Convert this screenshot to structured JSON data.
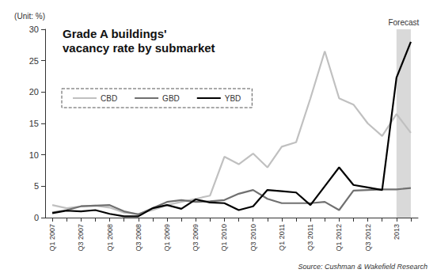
{
  "chart_data": {
    "type": "line",
    "title": "Grade A buildings'\nvacancy rate by submarket",
    "y_label": "(Unit: %)",
    "source": "Source: Cushman & Wakefield Research",
    "categories": [
      "Q1 2007",
      null,
      "Q3 2007",
      null,
      "Q1 2008",
      null,
      "Q3 2008",
      null,
      "Q1 2009",
      null,
      "Q3 2009",
      null,
      "Q1 2010",
      null,
      "Q3 2010",
      null,
      "Q1 2011",
      null,
      "Q3 2011",
      null,
      "Q1 2012",
      null,
      "Q3 2012",
      null,
      "2013",
      null
    ],
    "series": [
      {
        "name": "CBD",
        "color": "#c0c0c0",
        "values": [
          2,
          1.5,
          1.8,
          1.9,
          1.6,
          0.8,
          0.6,
          1.2,
          2,
          2.5,
          3,
          3.5,
          9.7,
          8.5,
          10.2,
          8,
          11.3,
          12,
          19,
          26.5,
          19,
          18,
          15,
          13,
          16.5,
          13.5
        ]
      },
      {
        "name": "GBD",
        "color": "#707070",
        "values": [
          0.8,
          1.2,
          1.8,
          1.9,
          2,
          1,
          0.5,
          1.5,
          2.5,
          2.8,
          2.5,
          2.6,
          2.8,
          3.8,
          4.4,
          3,
          2.3,
          2.3,
          2.3,
          2.5,
          1.2,
          4.3,
          4.4,
          4.5,
          4.5,
          4.7
        ]
      },
      {
        "name": "YBD",
        "color": "#000000",
        "values": [
          0.7,
          1.1,
          1,
          1.2,
          0.6,
          0.2,
          0.2,
          1.5,
          2,
          1.4,
          2.9,
          2.4,
          2.3,
          1.2,
          1.8,
          4.4,
          4.2,
          4,
          2,
          5,
          8,
          5.2,
          4.8,
          4.4,
          22.3,
          28
        ]
      }
    ],
    "shaded": {
      "label": "Forecast",
      "from_index": 24,
      "to_index": 25
    },
    "ylim": [
      0,
      30
    ],
    "yticks": [
      0,
      5,
      10,
      15,
      20,
      25,
      30
    ],
    "grid": false,
    "legend": "upper left"
  }
}
